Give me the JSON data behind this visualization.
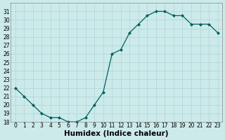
{
  "x": [
    0,
    1,
    2,
    3,
    4,
    5,
    6,
    7,
    8,
    9,
    10,
    11,
    12,
    13,
    14,
    15,
    16,
    17,
    18,
    19,
    20,
    21,
    22,
    23
  ],
  "y": [
    22,
    21,
    20,
    19,
    18.5,
    18.5,
    18,
    18,
    18.5,
    20,
    21.5,
    26,
    26.5,
    28.5,
    29.5,
    30.5,
    31,
    31,
    30.5,
    30.5,
    29.5,
    29.5,
    29.5,
    28.5
  ],
  "line_color": "#006060",
  "marker_color": "#006060",
  "bg_color": "#cceaea",
  "grid_color": "#b0d4d4",
  "xlabel": "Humidex (Indice chaleur)",
  "ylim": [
    18,
    32
  ],
  "xlim": [
    -0.5,
    23.5
  ],
  "yticks": [
    18,
    19,
    20,
    21,
    22,
    23,
    24,
    25,
    26,
    27,
    28,
    29,
    30,
    31
  ],
  "xticks": [
    0,
    1,
    2,
    3,
    4,
    5,
    6,
    7,
    8,
    9,
    10,
    11,
    12,
    13,
    14,
    15,
    16,
    17,
    18,
    19,
    20,
    21,
    22,
    23
  ],
  "tick_fontsize": 5.5,
  "xlabel_fontsize": 7.5,
  "figsize": [
    3.2,
    2.0
  ],
  "dpi": 100
}
